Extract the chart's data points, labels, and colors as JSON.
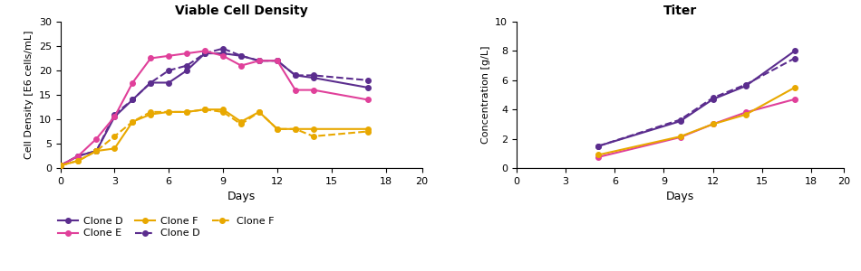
{
  "vcd_title": "Viable Cell Density",
  "vcd_ylabel": "Cell Density [E6 cells/mL]",
  "vcd_xlabel": "Days",
  "vcd_ylim": [
    0,
    30
  ],
  "vcd_xlim": [
    0,
    20
  ],
  "vcd_yticks": [
    0,
    5,
    10,
    15,
    20,
    25,
    30
  ],
  "vcd_xticks": [
    0,
    3,
    6,
    9,
    12,
    15,
    18,
    20
  ],
  "titer_title": "Titer",
  "titer_ylabel": "Concentration [g/L]",
  "titer_xlabel": "Days",
  "titer_ylim": [
    0,
    10
  ],
  "titer_xlim": [
    0,
    20
  ],
  "titer_yticks": [
    0,
    2,
    4,
    6,
    8,
    10
  ],
  "titer_xticks": [
    0,
    3,
    6,
    9,
    12,
    15,
    18,
    20
  ],
  "color_clone_d": "#5B2D8E",
  "color_clone_e": "#E0409A",
  "color_clone_f": "#E8A800",
  "vcd_clone_d_solid_x": [
    0,
    1,
    2,
    3,
    4,
    5,
    6,
    7,
    8,
    9,
    10,
    11,
    12,
    13,
    14,
    17
  ],
  "vcd_clone_d_solid_y": [
    0.5,
    2.5,
    3.5,
    10.5,
    14,
    17.5,
    17.5,
    20,
    23.5,
    23.5,
    23,
    22,
    22,
    19,
    18.5,
    16.5
  ],
  "vcd_clone_d_dash_x": [
    0,
    1,
    2,
    3,
    4,
    5,
    6,
    7,
    8,
    9,
    10,
    11,
    12,
    13,
    14,
    17
  ],
  "vcd_clone_d_dash_y": [
    0.5,
    2.5,
    3.5,
    11,
    14,
    17.5,
    20,
    21,
    23.5,
    24.5,
    23,
    22,
    22,
    19,
    19,
    18
  ],
  "vcd_clone_e_x": [
    0,
    1,
    2,
    3,
    4,
    5,
    6,
    7,
    8,
    9,
    10,
    11,
    12,
    13,
    14,
    17
  ],
  "vcd_clone_e_y": [
    0.5,
    2.5,
    6,
    10.5,
    17.5,
    22.5,
    23,
    23.5,
    24,
    23,
    21,
    22,
    22,
    16,
    16,
    14
  ],
  "vcd_clone_f_solid_x": [
    0,
    1,
    2,
    3,
    4,
    5,
    6,
    7,
    8,
    9,
    10,
    11,
    12,
    13,
    14,
    17
  ],
  "vcd_clone_f_solid_y": [
    0.5,
    1.5,
    3.5,
    4,
    9.5,
    11,
    11.5,
    11.5,
    12,
    12,
    9.5,
    11.5,
    8,
    8,
    8,
    8
  ],
  "vcd_clone_f_dash_x": [
    0,
    1,
    2,
    3,
    4,
    5,
    6,
    7,
    8,
    9,
    10,
    11,
    12,
    13,
    14,
    17
  ],
  "vcd_clone_f_dash_y": [
    0.5,
    1.5,
    3.5,
    6.5,
    9.5,
    11.5,
    11.5,
    11.5,
    12,
    11.5,
    9,
    11.5,
    8,
    8,
    6.5,
    7.5
  ],
  "titer_clone_d_solid_x": [
    5,
    10,
    12,
    14,
    17
  ],
  "titer_clone_d_solid_y": [
    1.5,
    3.2,
    4.7,
    5.6,
    8.0
  ],
  "titer_clone_d_dash_x": [
    5,
    10,
    12,
    14,
    17
  ],
  "titer_clone_d_dash_y": [
    1.5,
    3.3,
    4.8,
    5.7,
    7.5
  ],
  "titer_clone_e_x": [
    5,
    10,
    12,
    14,
    17
  ],
  "titer_clone_e_y": [
    0.75,
    2.1,
    3.0,
    3.8,
    4.7
  ],
  "titer_clone_f_x": [
    5,
    10,
    12,
    14,
    17
  ],
  "titer_clone_f_y": [
    0.9,
    2.15,
    3.0,
    3.65,
    5.5
  ]
}
